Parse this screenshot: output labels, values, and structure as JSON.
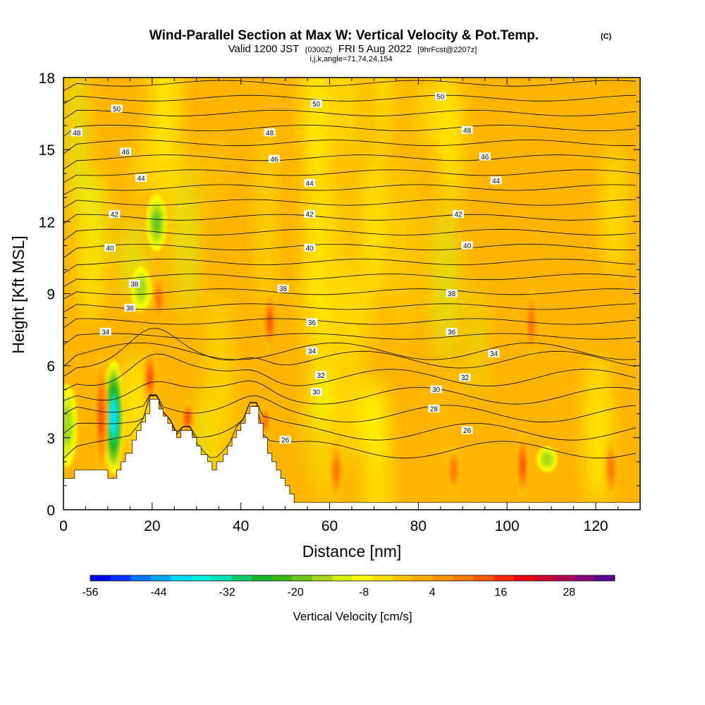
{
  "title": {
    "main": "Wind-Parallel Section at Max W: Vertical Velocity & Pot.Temp.",
    "copyright": "(C)",
    "valid_prefix": "Valid 1200 JST",
    "valid_utc": "(0300Z)",
    "valid_suffix": "FRI 5 Aug 2022",
    "fcst": "[9hrFcst@2207z]",
    "indices": "i,j,k,angle=71,74,24,154"
  },
  "chart_data": {
    "type": "heatmap",
    "xlabel": "Distance [nm]",
    "ylabel": "Height [Kft MSL]",
    "xlim": [
      0,
      130
    ],
    "ylim": [
      0,
      18
    ],
    "x_ticks": [
      "0",
      "20",
      "40",
      "60",
      "80",
      "100",
      "120"
    ],
    "y_ticks": [
      "0",
      "3",
      "6",
      "9",
      "12",
      "15",
      "18"
    ],
    "background_value_cm_s": 0,
    "updraft_columns": [
      {
        "x": 8.5,
        "y_base": 1.5,
        "y_top": 6.3,
        "w_cm_s": 22
      },
      {
        "x": 19.5,
        "y_base": 4.5,
        "y_top": 6.5,
        "w_cm_s": 20
      },
      {
        "x": 21.5,
        "y_base": 8.0,
        "y_top": 9.6,
        "w_cm_s": 18
      },
      {
        "x": 28,
        "y_base": 3.3,
        "y_top": 4.3,
        "w_cm_s": 20
      },
      {
        "x": 46.5,
        "y_base": 6.8,
        "y_top": 8.9,
        "w_cm_s": 20
      },
      {
        "x": 45.5,
        "y_base": 3.2,
        "y_top": 4.2,
        "w_cm_s": 18
      },
      {
        "x": 61.5,
        "y_base": 0.6,
        "y_top": 2.6,
        "w_cm_s": 16
      },
      {
        "x": 88,
        "y_base": 0.9,
        "y_top": 2.4,
        "w_cm_s": 16
      },
      {
        "x": 103.5,
        "y_base": 0.7,
        "y_top": 3.0,
        "w_cm_s": 20
      },
      {
        "x": 105.5,
        "y_base": 6.5,
        "y_top": 9.0,
        "w_cm_s": 16
      },
      {
        "x": 123.5,
        "y_base": 0.7,
        "y_top": 2.7,
        "w_cm_s": 18
      }
    ],
    "downdraft_columns": [
      {
        "x": 11.3,
        "y_base": 1.7,
        "y_top": 6.0,
        "w_cm_s": -42
      },
      {
        "x": 17.5,
        "y_base": 8.5,
        "y_top": 9.9,
        "w_cm_s": -14
      },
      {
        "x": 21,
        "y_base": 11.0,
        "y_top": 12.9,
        "w_cm_s": -16
      },
      {
        "x": 0.8,
        "y_base": 2.0,
        "y_top": 5.0,
        "w_cm_s": -14
      },
      {
        "x": 109,
        "y_base": 1.8,
        "y_top": 2.4,
        "w_cm_s": -12
      }
    ],
    "theta_contours": [
      {
        "label": "26",
        "label_positions": [
          [
            50,
            2.9
          ],
          [
            91,
            3.3
          ]
        ]
      },
      {
        "label": "28",
        "label_positions": [
          [
            83.5,
            4.2
          ]
        ]
      },
      {
        "label": "30",
        "label_positions": [
          [
            57,
            4.9
          ],
          [
            84,
            5.0
          ]
        ]
      },
      {
        "label": "32",
        "label_positions": [
          [
            58,
            5.6
          ],
          [
            90.5,
            5.5
          ]
        ]
      },
      {
        "label": "34",
        "label_positions": [
          [
            9.5,
            7.4
          ],
          [
            56,
            6.6
          ],
          [
            97,
            6.5
          ]
        ]
      },
      {
        "label": "36",
        "label_positions": [
          [
            15,
            8.4
          ],
          [
            56,
            7.8
          ],
          [
            87.5,
            7.4
          ]
        ]
      },
      {
        "label": "38",
        "label_positions": [
          [
            16,
            9.4
          ],
          [
            49.5,
            9.2
          ],
          [
            87.5,
            9.0
          ]
        ]
      },
      {
        "label": "40",
        "label_positions": [
          [
            10.5,
            10.9
          ],
          [
            55.5,
            10.9
          ],
          [
            91,
            11.0
          ]
        ]
      },
      {
        "label": "42",
        "label_positions": [
          [
            11.5,
            12.3
          ],
          [
            55.5,
            12.3
          ],
          [
            89,
            12.3
          ]
        ]
      },
      {
        "label": "44",
        "label_positions": [
          [
            17.5,
            13.8
          ],
          [
            55.5,
            13.6
          ],
          [
            97.5,
            13.7
          ]
        ]
      },
      {
        "label": "46",
        "label_positions": [
          [
            14,
            14.9
          ],
          [
            47.5,
            14.6
          ],
          [
            95,
            14.7
          ]
        ]
      },
      {
        "label": "48",
        "label_positions": [
          [
            3,
            15.7
          ],
          [
            46.5,
            15.7
          ],
          [
            91,
            15.8
          ]
        ]
      },
      {
        "label": "50",
        "label_positions": [
          [
            12,
            16.7
          ],
          [
            57,
            16.9
          ],
          [
            85,
            17.2
          ]
        ]
      }
    ],
    "terrain": [
      [
        0,
        1.3
      ],
      [
        2.5,
        1.3
      ],
      [
        2.5,
        1.65
      ],
      [
        10,
        1.65
      ],
      [
        10,
        1.3
      ],
      [
        12,
        1.3
      ],
      [
        12,
        1.65
      ],
      [
        13,
        1.65
      ],
      [
        13,
        2.0
      ],
      [
        14,
        2.0
      ],
      [
        14,
        2.35
      ],
      [
        15.5,
        2.35
      ],
      [
        15.5,
        2.9
      ],
      [
        16.5,
        2.9
      ],
      [
        16.5,
        3.3
      ],
      [
        17.5,
        3.3
      ],
      [
        17.5,
        3.65
      ],
      [
        18.5,
        3.65
      ],
      [
        18.5,
        4.0
      ],
      [
        19.5,
        4.0
      ],
      [
        19.5,
        4.6
      ],
      [
        21.5,
        4.6
      ],
      [
        21.5,
        4.2
      ],
      [
        22.5,
        4.2
      ],
      [
        22.5,
        3.9
      ],
      [
        23.5,
        3.9
      ],
      [
        23.5,
        3.6
      ],
      [
        24.5,
        3.6
      ],
      [
        24.5,
        3.3
      ],
      [
        25.5,
        3.3
      ],
      [
        25.5,
        3.0
      ],
      [
        26.5,
        3.0
      ],
      [
        26.5,
        3.3
      ],
      [
        29,
        3.3
      ],
      [
        29,
        3.0
      ],
      [
        30,
        3.0
      ],
      [
        30,
        2.65
      ],
      [
        31,
        2.65
      ],
      [
        31,
        2.3
      ],
      [
        32.5,
        2.3
      ],
      [
        32.5,
        2.0
      ],
      [
        33.5,
        2.0
      ],
      [
        33.5,
        1.65
      ],
      [
        34.5,
        1.65
      ],
      [
        34.5,
        2.0
      ],
      [
        36,
        2.0
      ],
      [
        36,
        2.3
      ],
      [
        37,
        2.3
      ],
      [
        37,
        2.65
      ],
      [
        38,
        2.65
      ],
      [
        38,
        3.0
      ],
      [
        39,
        3.0
      ],
      [
        39,
        3.3
      ],
      [
        40,
        3.3
      ],
      [
        40,
        3.6
      ],
      [
        41,
        3.6
      ],
      [
        41,
        4.0
      ],
      [
        42,
        4.0
      ],
      [
        42,
        4.3
      ],
      [
        44,
        4.3
      ],
      [
        44,
        3.6
      ],
      [
        45,
        3.6
      ],
      [
        45,
        3.0
      ],
      [
        46,
        3.0
      ],
      [
        46,
        2.35
      ],
      [
        47,
        2.35
      ],
      [
        47,
        2.0
      ],
      [
        48,
        2.0
      ],
      [
        48,
        1.65
      ],
      [
        49,
        1.65
      ],
      [
        49,
        1.3
      ],
      [
        50,
        1.3
      ],
      [
        50,
        1.0
      ],
      [
        51,
        1.0
      ],
      [
        51,
        0.65
      ],
      [
        52,
        0.65
      ],
      [
        52,
        0.3
      ],
      [
        130,
        0.3
      ]
    ]
  },
  "colorbar": {
    "label": "Vertical Velocity [cm/s]",
    "tick_labels": [
      "-56",
      "-44",
      "-32",
      "-20",
      "-8",
      "4",
      "16",
      "28"
    ],
    "range": [
      -56,
      36
    ],
    "step": 4,
    "colors": [
      "#0000f0",
      "#0033ff",
      "#0077ff",
      "#00a8ff",
      "#00d8f8",
      "#00f0e0",
      "#00e0b0",
      "#10cc70",
      "#19b428",
      "#38b81b",
      "#6cc81b",
      "#a6da18",
      "#d8ee10",
      "#ffff00",
      "#ffe000",
      "#ffc300",
      "#ffad00",
      "#ff9600",
      "#ff7a00",
      "#ff5a00",
      "#ff2a00",
      "#e60a10",
      "#cc0033",
      "#b30050",
      "#88007a",
      "#5a0090"
    ]
  }
}
